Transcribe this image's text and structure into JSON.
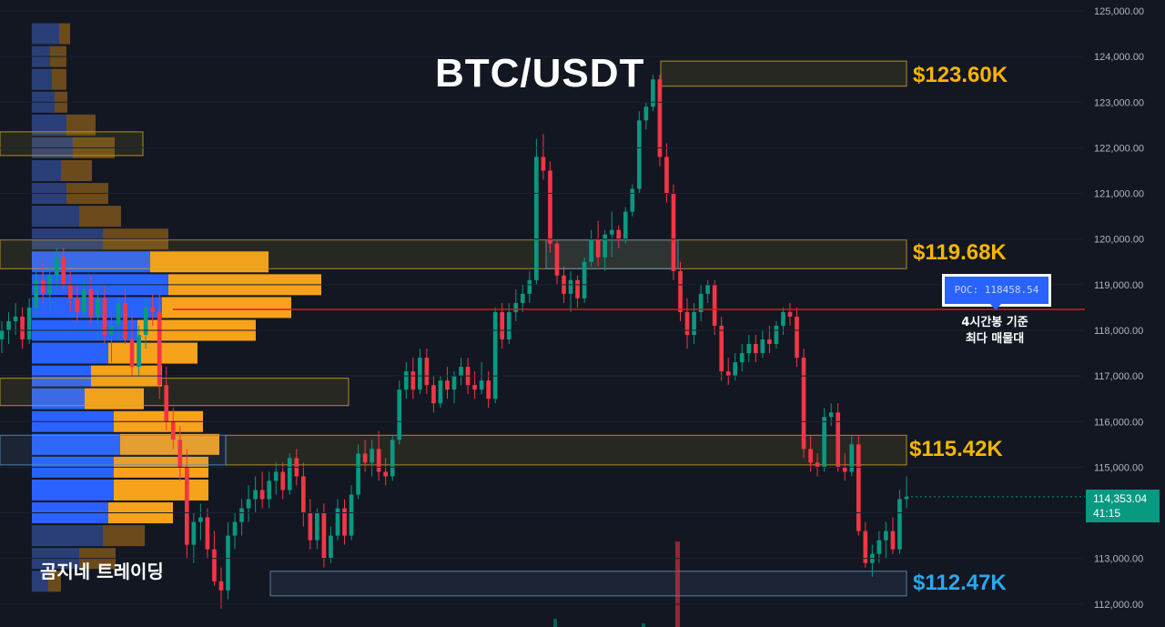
{
  "header": {
    "title": "BTC/USDT"
  },
  "brand": {
    "text": "곰지네 트레이딩"
  },
  "levels": [
    {
      "label": "$123.60K",
      "price": 123600,
      "color": "#f7b500"
    },
    {
      "label": "$119.68K",
      "price": 119680,
      "color": "#f7b500"
    },
    {
      "label": "$115.42K",
      "price": 115420,
      "color": "#f7b500"
    },
    {
      "label": "$112.47K",
      "price": 112470,
      "color": "#29a8f0"
    }
  ],
  "poc": {
    "label": "POC: 118458.54",
    "price": 118458.54,
    "note_line1": "4시간봉 기준",
    "note_line2": "최다 매물대"
  },
  "last_price": {
    "value": "114,353.04",
    "timer": "41:15"
  },
  "colors": {
    "up": "#089981",
    "down": "#f23645",
    "poc_line": "#e0151b",
    "zone_yellow": "#c9a227",
    "zone_blue": "#5d8fbf",
    "vp_buy": "#2962ff",
    "vp_sell": "#f7a21b"
  },
  "chart_data": {
    "type": "candlestick",
    "title": "BTC/USDT",
    "ylim": [
      111800,
      125300
    ],
    "y_ticks": [
      "112,000.00",
      "113,000.00",
      "114,000.00",
      "115,000.00",
      "116,000.00",
      "117,000.00",
      "118,000.00",
      "119,000.00",
      "120,000.00",
      "121,000.00",
      "122,000.00",
      "123,000.00",
      "124,000.00",
      "125,000.00"
    ],
    "candles": [
      [
        117800,
        118200,
        117500,
        118000
      ],
      [
        118000,
        118400,
        117700,
        118200
      ],
      [
        118200,
        118600,
        117900,
        118300
      ],
      [
        118300,
        118500,
        117600,
        117800
      ],
      [
        117800,
        118700,
        117700,
        118500
      ],
      [
        118500,
        119300,
        118300,
        119100
      ],
      [
        119100,
        119500,
        118600,
        118800
      ],
      [
        118800,
        119500,
        118400,
        119200
      ],
      [
        119200,
        119800,
        118900,
        119600
      ],
      [
        119600,
        119800,
        118900,
        119000
      ],
      [
        119000,
        119300,
        118400,
        118700
      ],
      [
        118700,
        119000,
        118200,
        118400
      ],
      [
        118400,
        119100,
        118300,
        118900
      ],
      [
        118900,
        119200,
        118100,
        118300
      ],
      [
        118300,
        118900,
        117800,
        118700
      ],
      [
        118700,
        119000,
        117700,
        117900
      ],
      [
        117900,
        118400,
        117300,
        118100
      ],
      [
        118100,
        118700,
        117800,
        118600
      ],
      [
        118600,
        118900,
        117700,
        117800
      ],
      [
        117800,
        118300,
        117000,
        117200
      ],
      [
        117200,
        118100,
        117000,
        117900
      ],
      [
        117900,
        118700,
        117600,
        118500
      ],
      [
        118500,
        118800,
        118100,
        118400
      ],
      [
        118400,
        118800,
        116500,
        116800
      ],
      [
        116800,
        117200,
        115800,
        116000
      ],
      [
        116000,
        116300,
        115400,
        115600
      ],
      [
        115600,
        115900,
        114700,
        115000
      ],
      [
        115000,
        115400,
        113000,
        113300
      ],
      [
        113300,
        114000,
        112900,
        113800
      ],
      [
        113800,
        114200,
        113400,
        113900
      ],
      [
        113900,
        114100,
        113000,
        113200
      ],
      [
        113200,
        113600,
        112400,
        112500
      ],
      [
        112500,
        112800,
        111900,
        112300
      ],
      [
        112300,
        113800,
        112100,
        113500
      ],
      [
        113500,
        114000,
        113200,
        113800
      ],
      [
        113800,
        114300,
        113500,
        114100
      ],
      [
        114100,
        114600,
        113800,
        114300
      ],
      [
        114300,
        114800,
        114000,
        114500
      ],
      [
        114500,
        114900,
        114100,
        114300
      ],
      [
        114300,
        114900,
        114100,
        114700
      ],
      [
        114700,
        115100,
        114400,
        114900
      ],
      [
        114900,
        115100,
        114300,
        114500
      ],
      [
        114500,
        115300,
        114400,
        115200
      ],
      [
        115200,
        115400,
        114600,
        114800
      ],
      [
        114800,
        115100,
        113700,
        114000
      ],
      [
        114000,
        114300,
        113200,
        113400
      ],
      [
        113400,
        114100,
        113200,
        114000
      ],
      [
        114000,
        114200,
        112800,
        113000
      ],
      [
        113000,
        113700,
        112900,
        113500
      ],
      [
        113500,
        114300,
        113400,
        114100
      ],
      [
        114100,
        114300,
        113300,
        113500
      ],
      [
        113500,
        114600,
        113400,
        114400
      ],
      [
        114400,
        115500,
        114300,
        115300
      ],
      [
        115300,
        115600,
        114900,
        115100
      ],
      [
        115100,
        115600,
        114800,
        115400
      ],
      [
        115400,
        115800,
        114700,
        114900
      ],
      [
        114900,
        115200,
        114600,
        114800
      ],
      [
        114800,
        115700,
        114700,
        115600
      ],
      [
        115600,
        116900,
        115500,
        116700
      ],
      [
        116700,
        117300,
        116500,
        117100
      ],
      [
        117100,
        117400,
        116500,
        116700
      ],
      [
        116700,
        117600,
        116600,
        117400
      ],
      [
        117400,
        117600,
        116600,
        116800
      ],
      [
        116800,
        117000,
        116200,
        116400
      ],
      [
        116400,
        117000,
        116300,
        116900
      ],
      [
        116900,
        117200,
        116500,
        116700
      ],
      [
        116700,
        117100,
        116400,
        117000
      ],
      [
        117000,
        117400,
        116800,
        117200
      ],
      [
        117200,
        117400,
        116600,
        116800
      ],
      [
        116800,
        117100,
        116500,
        116700
      ],
      [
        116700,
        117300,
        116600,
        116900
      ],
      [
        116900,
        117100,
        116300,
        116500
      ],
      [
        116500,
        118500,
        116400,
        118400
      ],
      [
        118400,
        118600,
        117600,
        117800
      ],
      [
        117800,
        118600,
        117700,
        118400
      ],
      [
        118400,
        118900,
        118200,
        118600
      ],
      [
        118600,
        119000,
        118400,
        118800
      ],
      [
        118800,
        119300,
        118600,
        119100
      ],
      [
        119100,
        122200,
        119000,
        121800
      ],
      [
        121800,
        122300,
        121300,
        121500
      ],
      [
        121500,
        121700,
        119700,
        119900
      ],
      [
        119900,
        120000,
        119000,
        119200
      ],
      [
        119200,
        119400,
        118600,
        118800
      ],
      [
        118800,
        119300,
        118400,
        119100
      ],
      [
        119100,
        119200,
        118500,
        118700
      ],
      [
        118700,
        119600,
        118600,
        119500
      ],
      [
        119500,
        120200,
        119400,
        120000
      ],
      [
        120000,
        120400,
        119400,
        119600
      ],
      [
        119600,
        120200,
        119300,
        120100
      ],
      [
        120100,
        120600,
        119600,
        120200
      ],
      [
        120200,
        120300,
        119800,
        120000
      ],
      [
        120000,
        120700,
        119900,
        120600
      ],
      [
        120600,
        121200,
        120500,
        121100
      ],
      [
        121100,
        122800,
        121000,
        122600
      ],
      [
        122600,
        123000,
        122400,
        122900
      ],
      [
        122900,
        123600,
        122800,
        123500
      ],
      [
        123500,
        123600,
        121600,
        121800
      ],
      [
        121800,
        122100,
        120800,
        121000
      ],
      [
        121000,
        121200,
        119100,
        119300
      ],
      [
        119300,
        119500,
        118200,
        118400
      ],
      [
        118400,
        118700,
        117600,
        117900
      ],
      [
        117900,
        118600,
        117700,
        118400
      ],
      [
        118400,
        119000,
        118200,
        118800
      ],
      [
        118800,
        119100,
        118600,
        119000
      ],
      [
        119000,
        119100,
        117900,
        118100
      ],
      [
        118100,
        118300,
        116900,
        117100
      ],
      [
        117100,
        117400,
        116800,
        117000
      ],
      [
        117000,
        117500,
        116900,
        117300
      ],
      [
        117300,
        117700,
        117100,
        117500
      ],
      [
        117500,
        117900,
        117300,
        117700
      ],
      [
        117700,
        117900,
        117300,
        117500
      ],
      [
        117500,
        118000,
        117400,
        117800
      ],
      [
        117800,
        118100,
        117500,
        117700
      ],
      [
        117700,
        118200,
        117600,
        118100
      ],
      [
        118100,
        118500,
        117900,
        118400
      ],
      [
        118400,
        118600,
        118100,
        118300
      ],
      [
        118300,
        118500,
        117200,
        117400
      ],
      [
        117400,
        117600,
        115200,
        115400
      ],
      [
        115400,
        115700,
        114900,
        115100
      ],
      [
        115100,
        115300,
        114800,
        115000
      ],
      [
        115000,
        116300,
        114900,
        116100
      ],
      [
        116100,
        116400,
        115900,
        116200
      ],
      [
        116200,
        116400,
        114900,
        115000
      ],
      [
        115000,
        115300,
        114700,
        114900
      ],
      [
        114900,
        115700,
        114800,
        115500
      ],
      [
        115500,
        115700,
        113500,
        113600
      ],
      [
        113600,
        113800,
        112800,
        112900
      ],
      [
        112900,
        113300,
        112600,
        113100
      ],
      [
        113100,
        113600,
        112900,
        113400
      ],
      [
        113400,
        113800,
        113000,
        113600
      ],
      [
        113600,
        113900,
        113100,
        113200
      ],
      [
        113200,
        114500,
        113100,
        114300
      ],
      [
        114300,
        114800,
        114100,
        114353
      ]
    ],
    "volume_profile": [
      {
        "price": 124500,
        "buy": 30,
        "sell": 12
      },
      {
        "price": 124000,
        "buy": 20,
        "sell": 18
      },
      {
        "price": 123500,
        "buy": 22,
        "sell": 16
      },
      {
        "price": 123000,
        "buy": 25,
        "sell": 14
      },
      {
        "price": 122500,
        "buy": 38,
        "sell": 32
      },
      {
        "price": 122000,
        "buy": 45,
        "sell": 46
      },
      {
        "price": 121500,
        "buy": 32,
        "sell": 34
      },
      {
        "price": 121000,
        "buy": 38,
        "sell": 46
      },
      {
        "price": 120500,
        "buy": 52,
        "sell": 46
      },
      {
        "price": 120000,
        "buy": 78,
        "sell": 72
      },
      {
        "price": 119500,
        "buy": 130,
        "sell": 130
      },
      {
        "price": 119000,
        "buy": 150,
        "sell": 168
      },
      {
        "price": 118500,
        "buy": 143,
        "sell": 142
      },
      {
        "price": 118000,
        "buy": 116,
        "sell": 130
      },
      {
        "price": 117500,
        "buy": 84,
        "sell": 98
      },
      {
        "price": 117000,
        "buy": 65,
        "sell": 78
      },
      {
        "price": 116500,
        "buy": 58,
        "sell": 65
      },
      {
        "price": 116000,
        "buy": 90,
        "sell": 98
      },
      {
        "price": 115500,
        "buy": 97,
        "sell": 109
      },
      {
        "price": 115000,
        "buy": 90,
        "sell": 104
      },
      {
        "price": 114500,
        "buy": 90,
        "sell": 104
      },
      {
        "price": 114000,
        "buy": 84,
        "sell": 71
      },
      {
        "price": 113500,
        "buy": 78,
        "sell": 46
      },
      {
        "price": 113000,
        "buy": 52,
        "sell": 40
      },
      {
        "price": 112500,
        "buy": 18,
        "sell": 14
      }
    ]
  }
}
